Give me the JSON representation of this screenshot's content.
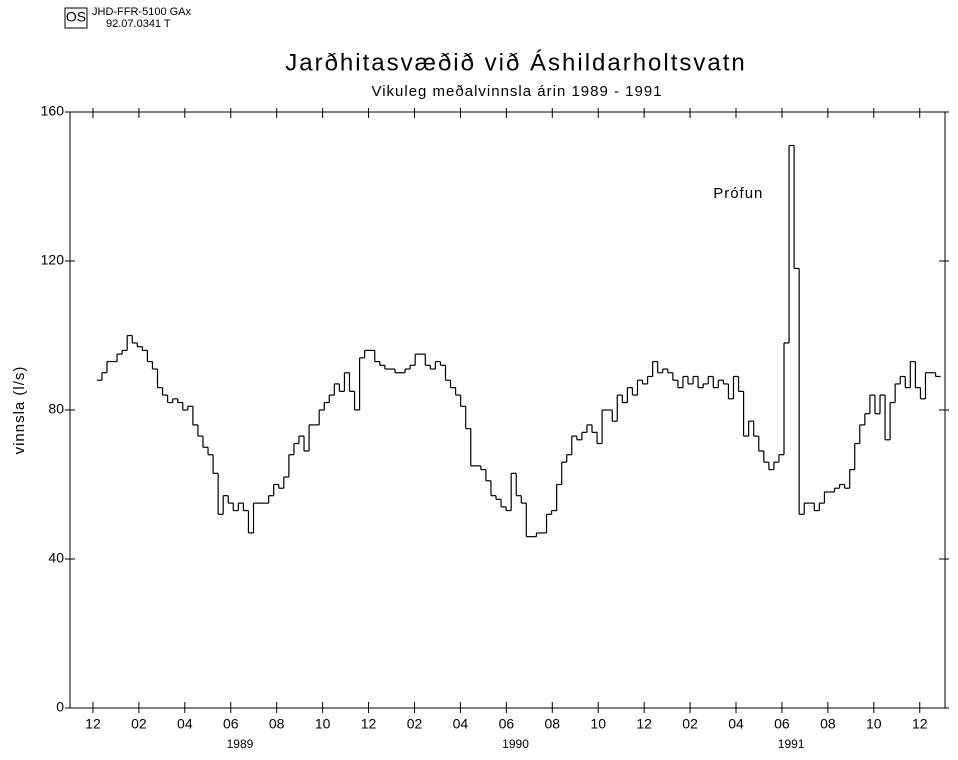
{
  "header": {
    "logo": "OS",
    "code": "JHD-FFR-5100 GAx",
    "number": "92.07.0341 T"
  },
  "chart_data": {
    "type": "step",
    "title": "Jarðhitasvæðið við Áshildarholtsvatn",
    "subtitle": "Vikuleg meðalvinnsla árin 1989 - 1991",
    "y_label": "vinnsla (l/s)",
    "color": "#000000",
    "annotations": [
      {
        "text": "Prófun",
        "x": 28.1,
        "y": 138
      }
    ],
    "ylim": [
      0,
      160
    ],
    "yticks": [
      0,
      40,
      80,
      120,
      160
    ],
    "xlim": [
      -1,
      37.1
    ],
    "xticks": [
      {
        "value": 0,
        "label": "12"
      },
      {
        "value": 2,
        "label": "02"
      },
      {
        "value": 4,
        "label": "04"
      },
      {
        "value": 6,
        "label": "06"
      },
      {
        "value": 8,
        "label": "08"
      },
      {
        "value": 10,
        "label": "10"
      },
      {
        "value": 12,
        "label": "12"
      },
      {
        "value": 14,
        "label": "02"
      },
      {
        "value": 16,
        "label": "04"
      },
      {
        "value": 18,
        "label": "06"
      },
      {
        "value": 20,
        "label": "08"
      },
      {
        "value": 22,
        "label": "10"
      },
      {
        "value": 24,
        "label": "12"
      },
      {
        "value": 26,
        "label": "02"
      },
      {
        "value": 28,
        "label": "04"
      },
      {
        "value": 30,
        "label": "06"
      },
      {
        "value": 32,
        "label": "08"
      },
      {
        "value": 34,
        "label": "10"
      },
      {
        "value": 36,
        "label": "12"
      }
    ],
    "year_labels": [
      {
        "value": 6.4,
        "label": "1989"
      },
      {
        "value": 18.4,
        "label": "1990"
      },
      {
        "value": 30.4,
        "label": "1991"
      }
    ],
    "x": [
      0.17,
      0.39,
      0.61,
      0.83,
      1.05,
      1.27,
      1.49,
      1.71,
      1.93,
      2.15,
      2.37,
      2.59,
      2.81,
      3.03,
      3.25,
      3.47,
      3.69,
      3.91,
      4.13,
      4.35,
      4.57,
      4.79,
      5.01,
      5.23,
      5.45,
      5.67,
      5.89,
      6.11,
      6.33,
      6.55,
      6.77,
      6.99,
      7.21,
      7.43,
      7.65,
      7.87,
      8.09,
      8.31,
      8.53,
      8.75,
      8.97,
      9.19,
      9.41,
      9.63,
      9.85,
      10.07,
      10.29,
      10.51,
      10.73,
      10.95,
      11.17,
      11.39,
      11.61,
      11.83,
      12.05,
      12.27,
      12.49,
      12.71,
      12.93,
      13.15,
      13.37,
      13.59,
      13.81,
      14.03,
      14.25,
      14.47,
      14.69,
      14.91,
      15.13,
      15.35,
      15.57,
      15.79,
      16.01,
      16.23,
      16.45,
      16.67,
      16.89,
      17.11,
      17.33,
      17.55,
      17.77,
      17.99,
      18.21,
      18.43,
      18.65,
      18.87,
      19.09,
      19.31,
      19.53,
      19.75,
      19.97,
      20.19,
      20.41,
      20.63,
      20.85,
      21.07,
      21.29,
      21.51,
      21.73,
      21.95,
      22.17,
      22.39,
      22.61,
      22.83,
      23.05,
      23.27,
      23.49,
      23.71,
      23.93,
      24.15,
      24.37,
      24.59,
      24.81,
      25.03,
      25.25,
      25.47,
      25.69,
      25.91,
      26.13,
      26.35,
      26.57,
      26.79,
      27.01,
      27.23,
      27.45,
      27.67,
      27.89,
      28.11,
      28.33,
      28.55,
      28.77,
      28.99,
      29.21,
      29.43,
      29.65,
      29.87,
      30.09,
      30.31,
      30.53,
      30.75,
      30.97,
      31.19,
      31.41,
      31.63,
      31.85,
      32.07,
      32.29,
      32.51,
      32.73,
      32.95,
      33.17,
      33.39,
      33.61,
      33.83,
      34.05,
      34.27,
      34.49,
      34.71,
      34.93,
      35.15,
      35.37,
      35.59,
      35.81,
      36.03,
      36.25,
      36.47,
      36.69
    ],
    "values": [
      88,
      90,
      93,
      93,
      95,
      96,
      100,
      98,
      97,
      96,
      93,
      91,
      86,
      84,
      82,
      83,
      82,
      80,
      81,
      76,
      73,
      70,
      68,
      63,
      52,
      57,
      55,
      53,
      55,
      53,
      47,
      55,
      55,
      55,
      57,
      60,
      59,
      62,
      68,
      71,
      73,
      69,
      76,
      76,
      80,
      82,
      84,
      87,
      85,
      90,
      85,
      80,
      94,
      96,
      96,
      93,
      92,
      91,
      91,
      90,
      90,
      91,
      92,
      95,
      95,
      92,
      91,
      93,
      92,
      88,
      86,
      84,
      81,
      75,
      65,
      65,
      64,
      61,
      57,
      56,
      54,
      53,
      63,
      57,
      55,
      46,
      46,
      47,
      47,
      52,
      53,
      60,
      66,
      68,
      73,
      72,
      74,
      76,
      74,
      71,
      80,
      80,
      77,
      84,
      82,
      86,
      84,
      88,
      87,
      89,
      93,
      90,
      91,
      90,
      88,
      86,
      89,
      87,
      89,
      86,
      87,
      89,
      86,
      88,
      87,
      83,
      89,
      85,
      73,
      77,
      73,
      69,
      66,
      64,
      66,
      68,
      98,
      151,
      118,
      52,
      55,
      55,
      53,
      55,
      58,
      58,
      59,
      60,
      59,
      64,
      71,
      76,
      79,
      84,
      79,
      84,
      72,
      82,
      87,
      89,
      86,
      93,
      86,
      83,
      90,
      90,
      89
    ]
  }
}
